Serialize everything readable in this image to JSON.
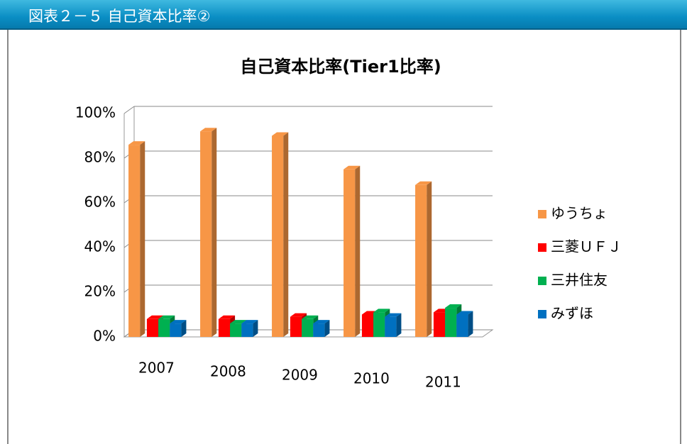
{
  "header": {
    "title": "図表２－５ 自己資本比率②"
  },
  "chart_data": {
    "type": "bar3d",
    "title": "自己資本比率(Tier1比率)",
    "categories": [
      "2007",
      "2008",
      "2009",
      "2010",
      "2011"
    ],
    "series": [
      {
        "name": "ゆうちょ",
        "color": "#f79646",
        "values": [
          86,
          92,
          90,
          75,
          68
        ]
      },
      {
        "name": "三菱ＵＦＪ",
        "color": "#ff0000",
        "values": [
          8,
          8,
          9,
          10,
          11
        ]
      },
      {
        "name": "三井住友",
        "color": "#00b050",
        "values": [
          8,
          6,
          8,
          11,
          13
        ]
      },
      {
        "name": "みずほ",
        "color": "#0070c0",
        "values": [
          6,
          6,
          6,
          9,
          10
        ]
      }
    ],
    "ylim": [
      0,
      100
    ],
    "yticks": [
      {
        "value": 0,
        "label": "0%"
      },
      {
        "value": 20,
        "label": "20%"
      },
      {
        "value": 40,
        "label": "40%"
      },
      {
        "value": 60,
        "label": "60%"
      },
      {
        "value": 80,
        "label": "80%"
      },
      {
        "value": 100,
        "label": "100%"
      }
    ],
    "grid": true,
    "legend": "right"
  }
}
